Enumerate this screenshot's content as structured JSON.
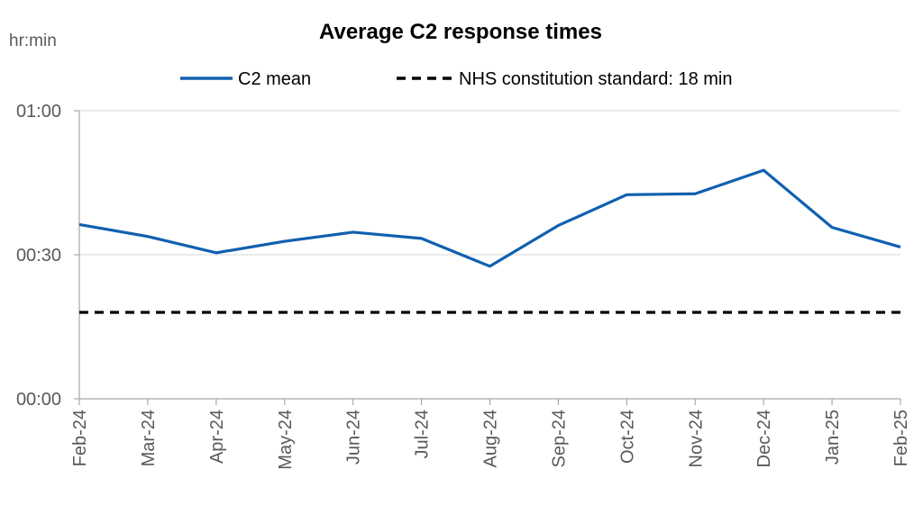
{
  "chart_data": {
    "type": "line",
    "title": "Average C2 response times",
    "ylabel": "hr:min",
    "xlabel": "",
    "categories": [
      "Feb-24",
      "Mar-24",
      "Apr-24",
      "May-24",
      "Jun-24",
      "Jul-24",
      "Aug-24",
      "Sep-24",
      "Oct-24",
      "Nov-24",
      "Dec-24",
      "Jan-25",
      "Feb-25"
    ],
    "yticks": [
      "00:00",
      "00:30",
      "01:00"
    ],
    "ylim": [
      0,
      60
    ],
    "ytick_values": [
      0,
      30,
      60
    ],
    "grid": true,
    "legend_position": "top",
    "series": [
      {
        "name": "C2 mean",
        "color": "#1060B0",
        "style": "solid",
        "values": [
          36.3,
          33.8,
          30.4,
          32.8,
          34.7,
          33.4,
          27.6,
          36.1,
          42.5,
          42.7,
          47.6,
          35.7,
          31.6
        ]
      },
      {
        "name": "NHS constitution standard: 18 min",
        "color": "#000000",
        "style": "dashed",
        "values": [
          18,
          18,
          18,
          18,
          18,
          18,
          18,
          18,
          18,
          18,
          18,
          18,
          18
        ]
      }
    ]
  }
}
